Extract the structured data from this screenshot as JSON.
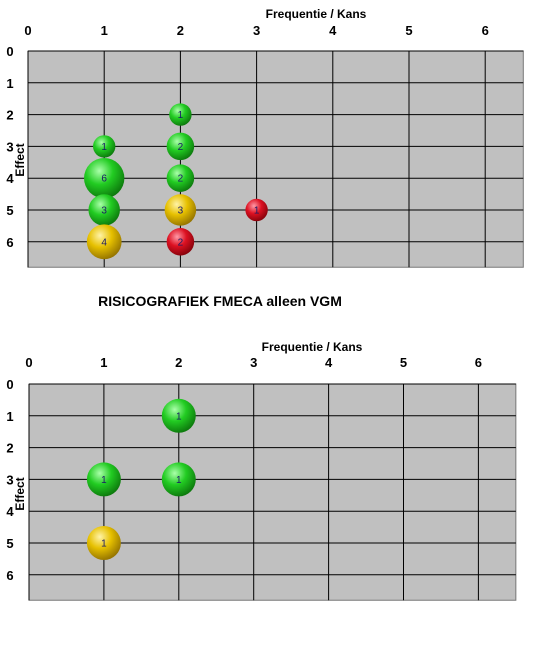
{
  "colors": {
    "plot_bg": "#c0c0c0",
    "grid": "#000000",
    "green": "#22cc22",
    "yellow": "#e6c000",
    "red": "#dd1122"
  },
  "section_title": "RISICOGRAFIEK FMECA alleen VGM",
  "chart_data": [
    {
      "type": "scatter",
      "subtype": "bubble",
      "title": "",
      "xlabel": "Frequentie / Kans",
      "ylabel": "Effect",
      "xlim": [
        0,
        6.5
      ],
      "ylim": [
        0,
        6.8
      ],
      "y_inverted": true,
      "x_ticks": [
        "0",
        "1",
        "2",
        "3",
        "4",
        "5",
        "6"
      ],
      "y_ticks": [
        "0",
        "1",
        "2",
        "3",
        "4",
        "5",
        "6"
      ],
      "grid": true,
      "legend": "none",
      "points": [
        {
          "x": 2,
          "y": 2,
          "value": 1,
          "color": "green"
        },
        {
          "x": 1,
          "y": 3,
          "value": 1,
          "color": "green"
        },
        {
          "x": 2,
          "y": 3,
          "value": 2,
          "color": "green"
        },
        {
          "x": 1,
          "y": 4,
          "value": 6,
          "color": "green"
        },
        {
          "x": 2,
          "y": 4,
          "value": 2,
          "color": "green"
        },
        {
          "x": 1,
          "y": 5,
          "value": 3,
          "color": "green"
        },
        {
          "x": 2,
          "y": 5,
          "value": 3,
          "color": "yellow"
        },
        {
          "x": 3,
          "y": 5,
          "value": 1,
          "color": "red"
        },
        {
          "x": 1,
          "y": 6,
          "value": 4,
          "color": "yellow"
        },
        {
          "x": 2,
          "y": 6,
          "value": 2,
          "color": "red"
        }
      ]
    },
    {
      "type": "scatter",
      "subtype": "bubble",
      "title": "",
      "xlabel": "Frequentie / Kans",
      "ylabel": "Effect",
      "xlim": [
        0,
        6.5
      ],
      "ylim": [
        0,
        6.8
      ],
      "y_inverted": true,
      "x_ticks": [
        "0",
        "1",
        "2",
        "3",
        "4",
        "5",
        "6"
      ],
      "y_ticks": [
        "0",
        "1",
        "2",
        "3",
        "4",
        "5",
        "6"
      ],
      "grid": true,
      "legend": "none",
      "points": [
        {
          "x": 2,
          "y": 1,
          "value": 1,
          "color": "green"
        },
        {
          "x": 1,
          "y": 3,
          "value": 1,
          "color": "green"
        },
        {
          "x": 2,
          "y": 3,
          "value": 1,
          "color": "green"
        },
        {
          "x": 1,
          "y": 5,
          "value": 1,
          "color": "yellow"
        }
      ]
    }
  ]
}
